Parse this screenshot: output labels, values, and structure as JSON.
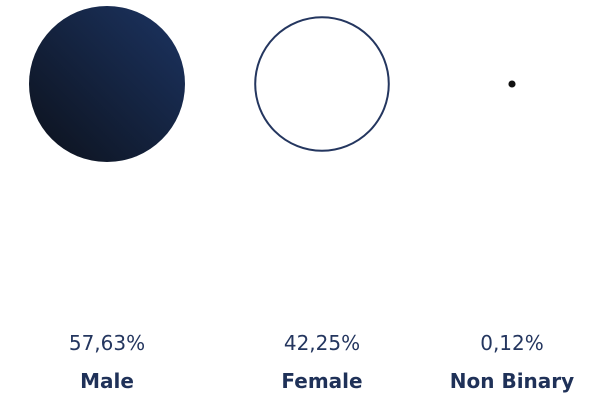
{
  "chart_data": {
    "type": "lollipop",
    "categories": [
      "Male",
      "Female",
      "Non Binary"
    ],
    "values": [
      57.63,
      42.25,
      0.12
    ],
    "value_labels": [
      "57,63%",
      "42,25%",
      "0,12%"
    ],
    "colors": {
      "male_fill_dark": "#0c111b",
      "male_fill_light": "#1c3462",
      "female_fill": "#ffffff",
      "outline": "#24365f",
      "stem_top": "#24365f",
      "stem_bottom": "#141414",
      "label": "#24365f"
    }
  }
}
